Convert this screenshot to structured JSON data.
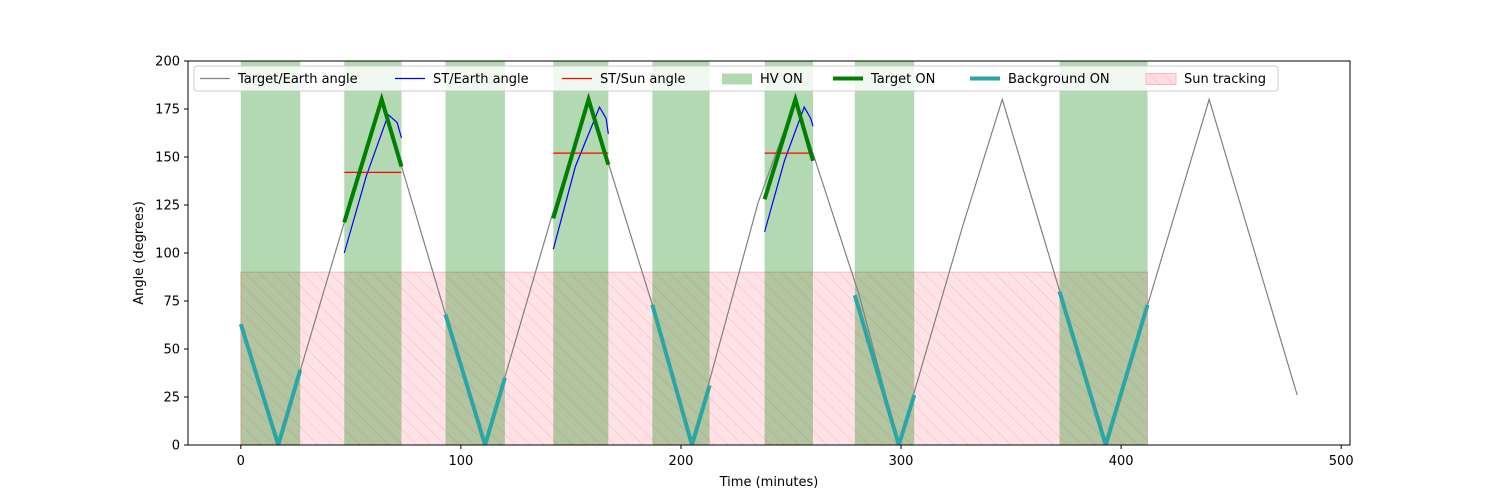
{
  "chart_data": {
    "type": "line",
    "xlabel": "Time (minutes)",
    "ylabel": "Angle (degrees)",
    "xlim": [
      -24,
      504
    ],
    "ylim": [
      0,
      200
    ],
    "xticks": [
      0,
      100,
      200,
      300,
      400,
      500
    ],
    "yticks": [
      0,
      25,
      50,
      75,
      100,
      125,
      150,
      175,
      200
    ],
    "grid": false,
    "legend_position": "top",
    "colors": {
      "target_earth": "#808080",
      "st_earth": "#0000ff",
      "st_sun": "#ff0000",
      "hv_on": "#b2d8b2",
      "target_on": "#008000",
      "background_on": "#2ca6a4",
      "sun_tracking_fill": "#ffdde1",
      "sun_tracking_edge": "#ffb6c1"
    },
    "legend": [
      {
        "key": "target_earth",
        "label": "Target/Earth angle",
        "style": "thin-line"
      },
      {
        "key": "st_earth",
        "label": "ST/Earth angle",
        "style": "thin-line"
      },
      {
        "key": "st_sun",
        "label": "ST/Sun angle",
        "style": "thin-line"
      },
      {
        "key": "hv_on",
        "label": "HV ON",
        "style": "patch"
      },
      {
        "key": "target_on",
        "label": "Target ON",
        "style": "thick-line"
      },
      {
        "key": "background_on",
        "label": "Background ON",
        "style": "thick-line"
      },
      {
        "key": "sun_tracking",
        "label": "Sun tracking",
        "style": "hatch-patch"
      }
    ],
    "series": {
      "target_earth": {
        "x": [
          0,
          17,
          47,
          64,
          93,
          111,
          141,
          158,
          187,
          205,
          235,
          252,
          281,
          299,
          328,
          346,
          393,
          440,
          480
        ],
        "y": [
          63,
          0,
          116,
          180,
          68,
          0,
          118,
          180,
          73,
          0,
          126,
          180,
          78,
          0,
          114,
          180,
          0,
          180,
          26
        ]
      },
      "st_earth": [
        {
          "x": [
            47,
            57,
            67,
            71,
            73
          ],
          "y": [
            100,
            140,
            172,
            168,
            160
          ]
        },
        {
          "x": [
            142,
            152,
            163,
            166,
            167
          ],
          "y": [
            102,
            145,
            176,
            170,
            162
          ]
        },
        {
          "x": [
            238,
            247,
            256,
            259,
            260
          ],
          "y": [
            111,
            148,
            176,
            170,
            166
          ]
        }
      ],
      "st_sun": [
        {
          "x": [
            47,
            73
          ],
          "y": [
            142,
            142
          ]
        },
        {
          "x": [
            142,
            167
          ],
          "y": [
            152,
            152
          ]
        },
        {
          "x": [
            238,
            260
          ],
          "y": [
            152,
            152
          ]
        }
      ],
      "target_on": [
        {
          "x": [
            47,
            64,
            73
          ],
          "y": [
            116,
            180,
            145
          ]
        },
        {
          "x": [
            142,
            158,
            167
          ],
          "y": [
            118,
            180,
            146
          ]
        },
        {
          "x": [
            238,
            252,
            260
          ],
          "y": [
            128,
            180,
            148
          ]
        }
      ],
      "background_on": [
        {
          "x": [
            0,
            17,
            27
          ],
          "y": [
            63,
            0,
            39
          ]
        },
        {
          "x": [
            93,
            111,
            120
          ],
          "y": [
            68,
            0,
            35
          ]
        },
        {
          "x": [
            187,
            205,
            213
          ],
          "y": [
            73,
            0,
            31
          ]
        },
        {
          "x": [
            279,
            299,
            306
          ],
          "y": [
            78,
            0,
            26
          ]
        },
        {
          "x": [
            372,
            393,
            412
          ],
          "y": [
            80,
            0,
            73
          ]
        }
      ]
    },
    "hv_on_intervals": [
      [
        0,
        27
      ],
      [
        47,
        73
      ],
      [
        93,
        120
      ],
      [
        142,
        167
      ],
      [
        187,
        213
      ],
      [
        238,
        260
      ],
      [
        279,
        306
      ],
      [
        372,
        412
      ]
    ],
    "sun_tracking": {
      "x_range": [
        0,
        412
      ],
      "y_range": [
        0,
        90
      ]
    }
  }
}
